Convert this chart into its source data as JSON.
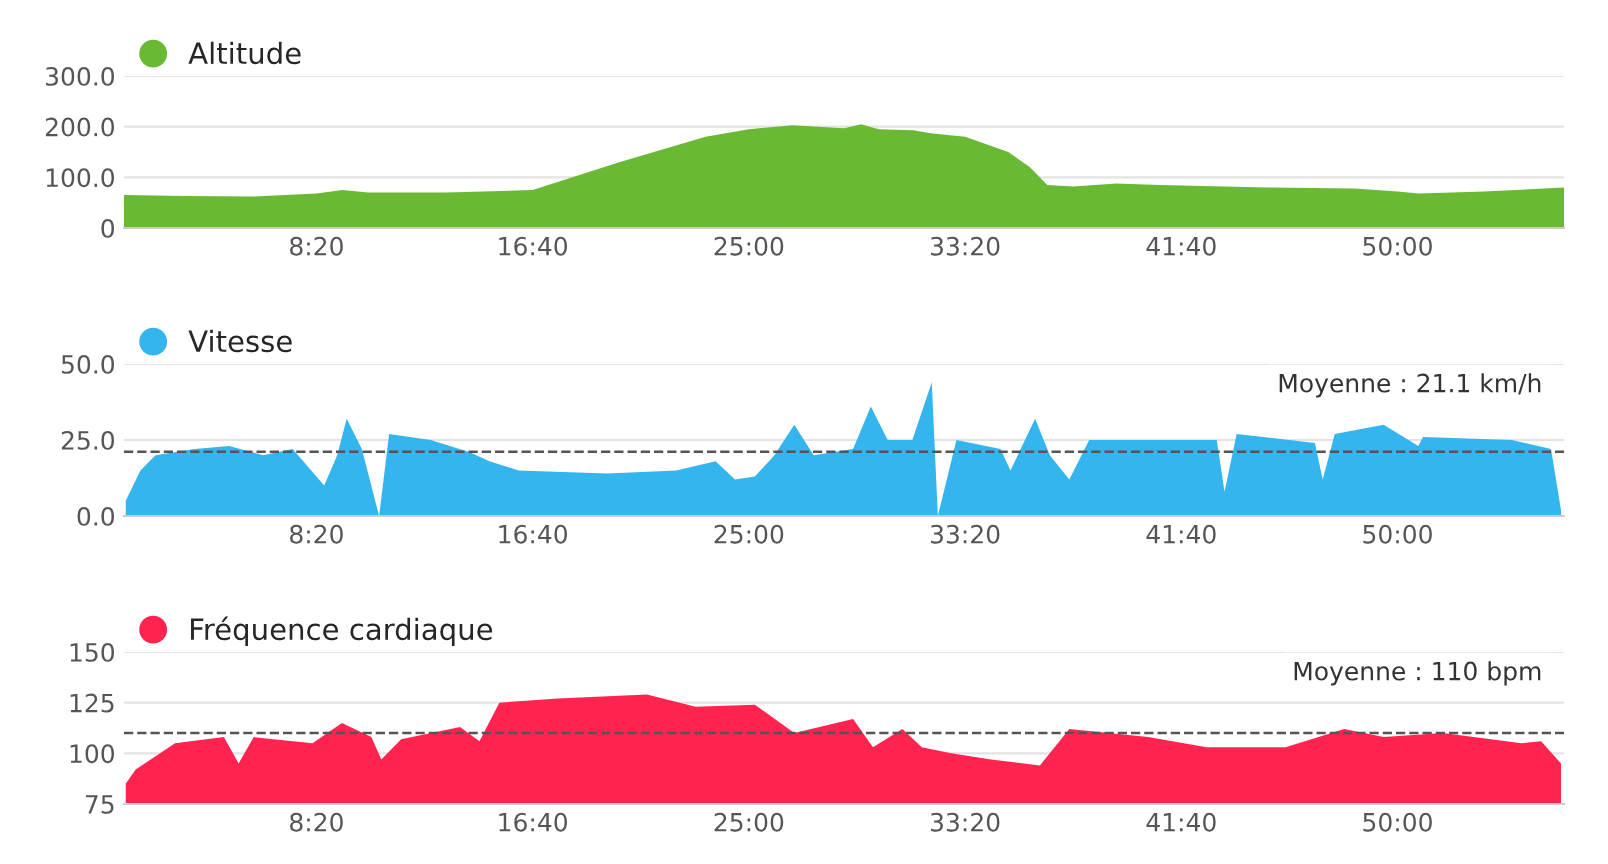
{
  "chart_data": [
    {
      "type": "area",
      "legend": "top left",
      "grid": "y",
      "series": [
        {
          "name": "Altitude",
          "color": "#6ab934",
          "x": [
            55,
            200,
            350,
            500,
            560,
            620,
            800,
            1000,
            1200,
            1400,
            1500,
            1600,
            1720,
            1760,
            1800,
            1880,
            1920,
            2000,
            2100,
            2150,
            2190,
            2250,
            2350,
            2450,
            2550,
            2700,
            2900,
            3000,
            3050,
            3200,
            3385
          ],
          "values": [
            65,
            63,
            62,
            68,
            75,
            70,
            70,
            75,
            130,
            180,
            195,
            203,
            197,
            205,
            195,
            193,
            187,
            180,
            150,
            120,
            85,
            82,
            88,
            85,
            83,
            80,
            78,
            72,
            68,
            72,
            80
          ]
        }
      ],
      "xlim": [
        55,
        3385
      ],
      "xticks": [
        {
          "value": 500,
          "label": "8:20"
        },
        {
          "value": 1000,
          "label": "16:40"
        },
        {
          "value": 1500,
          "label": "25:00"
        },
        {
          "value": 2000,
          "label": "33:20"
        },
        {
          "value": 2500,
          "label": "41:40"
        },
        {
          "value": 3000,
          "label": "50:00"
        }
      ],
      "ylim": [
        0,
        300
      ],
      "yticks": [
        0,
        {
          "value": 100,
          "label": "100.0"
        },
        {
          "value": 200,
          "label": "200.0"
        },
        {
          "value": 300,
          "label": "300.0"
        }
      ]
    },
    {
      "type": "area",
      "legend": "top left",
      "grid": "y",
      "series": [
        {
          "name": "Vitesse",
          "color": "#35b5ed",
          "x": [
            59,
            93,
            128,
            218,
            298,
            377,
            445,
            518,
            548,
            570,
            605,
            645,
            668,
            764,
            855,
            900,
            968,
            1173,
            1332,
            1423,
            1468,
            1514,
            1559,
            1605,
            1650,
            1741,
            1782,
            1821,
            1878,
            1923,
            1937,
            1980,
            2082,
            2105,
            2162,
            2196,
            2241,
            2287,
            2423,
            2582,
            2600,
            2628,
            2809,
            2827,
            2855,
            2968,
            3048,
            3059,
            3264,
            3355,
            3378
          ],
          "values": [
            5,
            15,
            20,
            22,
            23,
            20,
            22,
            10,
            20,
            32,
            22,
            0,
            27,
            25,
            21,
            18,
            15,
            14,
            15,
            18,
            12,
            13,
            20,
            30,
            20,
            22,
            36,
            25,
            25,
            44,
            0,
            25,
            22,
            15,
            32,
            20,
            12,
            25,
            25,
            25,
            8,
            27,
            24,
            12,
            27,
            30,
            23,
            26,
            25,
            22,
            2
          ]
        }
      ],
      "xlim": [
        55,
        3385
      ],
      "xticks": [
        {
          "value": 500,
          "label": "8:20"
        },
        {
          "value": 1000,
          "label": "16:40"
        },
        {
          "value": 1500,
          "label": "25:00"
        },
        {
          "value": 2000,
          "label": "33:20"
        },
        {
          "value": 2500,
          "label": "41:40"
        },
        {
          "value": 3000,
          "label": "50:00"
        }
      ],
      "ylim": [
        0,
        50
      ],
      "yticks": [
        {
          "value": 0,
          "label": "0.0"
        },
        {
          "value": 25,
          "label": "25.0"
        },
        {
          "value": 50,
          "label": "50.0"
        }
      ],
      "ref_lines": [
        {
          "axis": "y",
          "value": 21.1,
          "label": "Moyenne : 21.1 km/h",
          "color": "#555555",
          "line_style": "dashed"
        }
      ]
    },
    {
      "type": "area",
      "legend": "top left",
      "grid": "y",
      "series": [
        {
          "name": "Fréquence cardiaque",
          "color": "#ff2450",
          "x": [
            59,
            82,
            173,
            286,
            320,
            355,
            491,
            559,
            627,
            650,
            696,
            832,
            877,
            923,
            1059,
            1264,
            1377,
            1514,
            1605,
            1741,
            1787,
            1855,
            1900,
            1968,
            2060,
            2173,
            2241,
            2423,
            2559,
            2741,
            2877,
            2968,
            3105,
            3287,
            3332,
            3378
          ],
          "values": [
            85,
            92,
            105,
            108,
            95,
            108,
            105,
            115,
            108,
            97,
            107,
            113,
            106,
            125,
            127,
            129,
            123,
            124,
            110,
            117,
            103,
            112,
            103,
            100,
            97,
            94,
            112,
            108,
            103,
            103,
            112,
            108,
            110,
            105,
            106,
            95
          ]
        }
      ],
      "xlim": [
        55,
        3385
      ],
      "xticks": [
        {
          "value": 500,
          "label": "8:20"
        },
        {
          "value": 1000,
          "label": "16:40"
        },
        {
          "value": 1500,
          "label": "25:00"
        },
        {
          "value": 2000,
          "label": "33:20"
        },
        {
          "value": 2500,
          "label": "41:40"
        },
        {
          "value": 3000,
          "label": "50:00"
        }
      ],
      "ylim": [
        75,
        150
      ],
      "yticks": [
        75,
        100,
        125,
        150
      ],
      "ref_lines": [
        {
          "axis": "y",
          "value": 110,
          "label": "Moyenne : 110 bpm",
          "color": "#555555",
          "line_style": "dashed"
        }
      ]
    }
  ]
}
